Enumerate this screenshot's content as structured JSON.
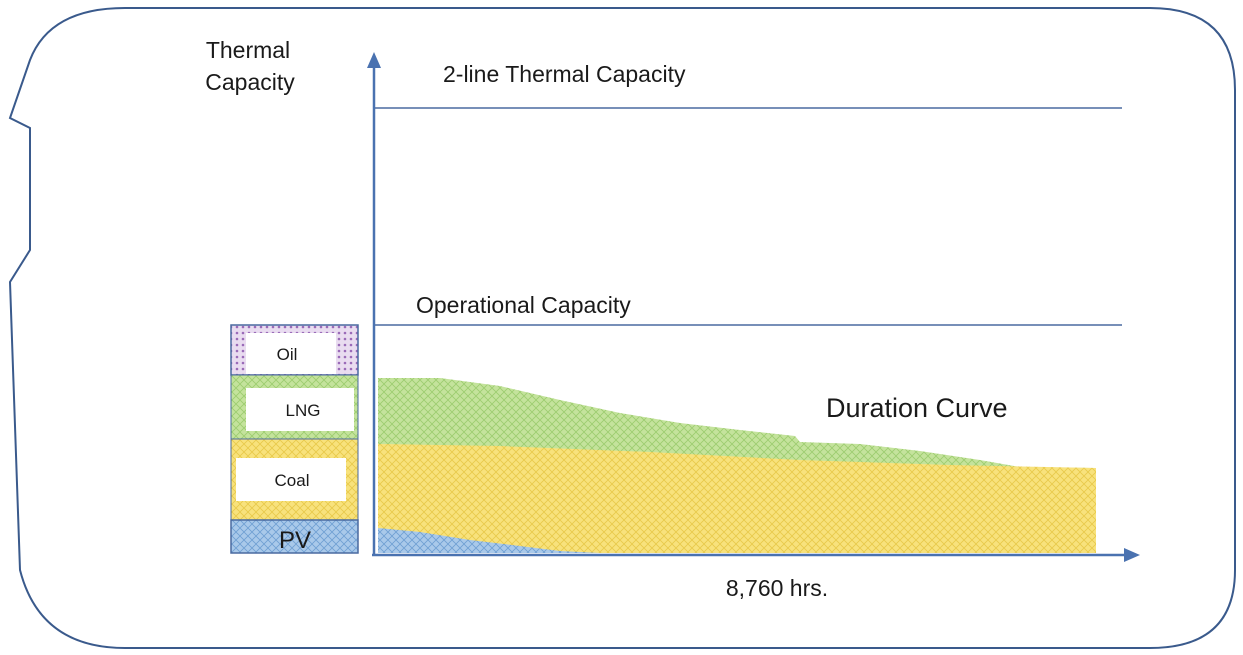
{
  "axis": {
    "y_label_line1": "Thermal",
    "y_label_line2": "Capacity",
    "x_label": "8,760 hrs."
  },
  "lines": {
    "two_line_capacity": "2-line Thermal Capacity",
    "operational_capacity": "Operational Capacity"
  },
  "curve_label": "Duration Curve",
  "stack": [
    {
      "label": "Oil",
      "color": "#a77cc0"
    },
    {
      "label": "LNG",
      "color": "#b6dc8e"
    },
    {
      "label": "Coal",
      "color": "#f7e07a"
    },
    {
      "label": "PV",
      "color": "#8eb8e0"
    }
  ],
  "colors": {
    "frame": "#3a5a8c",
    "axis": "#4a72b0",
    "capacity_line": "#4a6aa0",
    "pv": "#8eb8e0",
    "coal": "#f5dc6a",
    "lng": "#b5dc8a",
    "oil": "#a77cc0"
  }
}
